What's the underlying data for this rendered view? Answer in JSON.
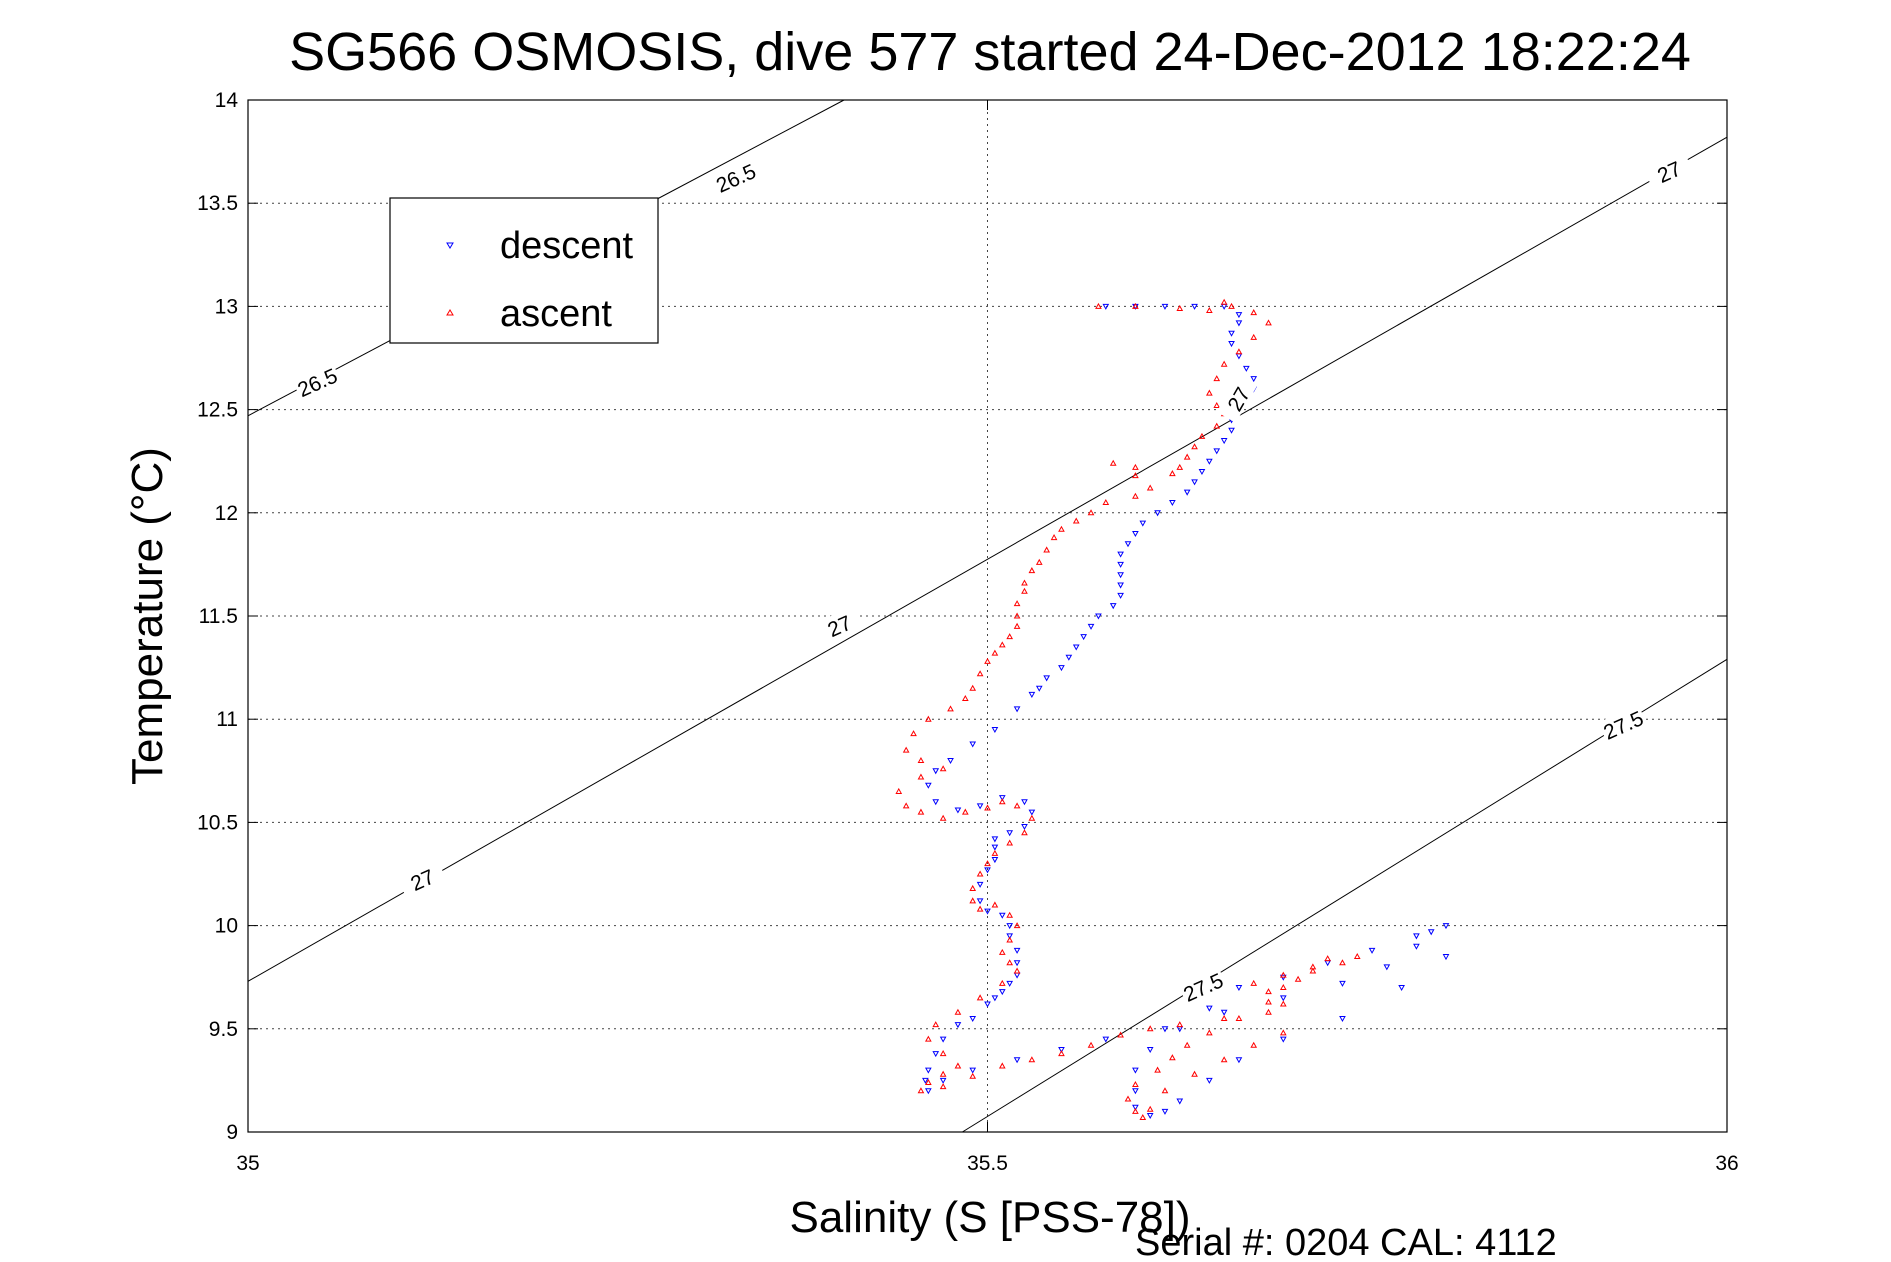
{
  "chart_data": {
    "type": "scatter",
    "title": "SG566 OSMOSIS, dive 577 started 24-Dec-2012 18:22:24",
    "xlabel": "Salinity (S [PSS-78])",
    "ylabel": "Temperature (°C)",
    "xlim": [
      35,
      36
    ],
    "ylim": [
      9,
      14
    ],
    "xticks": [
      "35",
      "35.5",
      "36"
    ],
    "yticks": [
      "9",
      "9.5",
      "10",
      "10.5",
      "11",
      "11.5",
      "12",
      "12.5",
      "13",
      "13.5",
      "14"
    ],
    "grid": true,
    "legend_position": "top-left",
    "footnote": "Serial #: 0204  CAL: 4112",
    "density_contours": [
      {
        "level": "26.5",
        "points": [
          [
            35,
            12.47
          ],
          [
            35.403,
            14
          ]
        ]
      },
      {
        "level": "27",
        "points": [
          [
            35,
            9.73
          ],
          [
            36,
            13.82
          ]
        ]
      },
      {
        "level": "27.5",
        "points": [
          [
            35.483,
            9
          ],
          [
            36,
            11.29
          ]
        ]
      }
    ],
    "contour_labels": [
      {
        "text": "26.5",
        "x": 35.33,
        "y": 13.62,
        "angle": -24
      },
      {
        "text": "26.5",
        "x": 35.047,
        "y": 12.63,
        "angle": -24
      },
      {
        "text": "27",
        "x": 35.961,
        "y": 13.65,
        "angle": -24
      },
      {
        "text": "27",
        "x": 35.4,
        "y": 11.45,
        "angle": -24
      },
      {
        "text": "27",
        "x": 35.118,
        "y": 10.22,
        "angle": -24
      },
      {
        "text": "27",
        "x": 35.67,
        "y": 12.55,
        "angle": -60
      },
      {
        "text": "27.5",
        "x": 35.93,
        "y": 10.97,
        "angle": -24
      },
      {
        "text": "27.5",
        "x": 35.646,
        "y": 9.7,
        "angle": -24
      }
    ],
    "series": [
      {
        "name": "descent",
        "color": "#0000ff",
        "marker": "triangle-down",
        "points": [
          [
            35.58,
            13.0
          ],
          [
            35.6,
            13.0
          ],
          [
            35.62,
            13.0
          ],
          [
            35.64,
            13.0
          ],
          [
            35.66,
            13.0
          ],
          [
            35.67,
            12.96
          ],
          [
            35.67,
            12.92
          ],
          [
            35.665,
            12.87
          ],
          [
            35.665,
            12.82
          ],
          [
            35.67,
            12.76
          ],
          [
            35.675,
            12.7
          ],
          [
            35.68,
            12.65
          ],
          [
            35.68,
            12.6
          ],
          [
            35.675,
            12.55
          ],
          [
            35.67,
            12.5
          ],
          [
            35.665,
            12.45
          ],
          [
            35.665,
            12.4
          ],
          [
            35.66,
            12.35
          ],
          [
            35.655,
            12.3
          ],
          [
            35.65,
            12.25
          ],
          [
            35.645,
            12.2
          ],
          [
            35.64,
            12.15
          ],
          [
            35.635,
            12.1
          ],
          [
            35.625,
            12.05
          ],
          [
            35.615,
            12.0
          ],
          [
            35.605,
            11.95
          ],
          [
            35.6,
            11.9
          ],
          [
            35.595,
            11.85
          ],
          [
            35.59,
            11.8
          ],
          [
            35.59,
            11.75
          ],
          [
            35.59,
            11.7
          ],
          [
            35.59,
            11.65
          ],
          [
            35.59,
            11.6
          ],
          [
            35.585,
            11.55
          ],
          [
            35.575,
            11.5
          ],
          [
            35.57,
            11.45
          ],
          [
            35.565,
            11.4
          ],
          [
            35.56,
            11.35
          ],
          [
            35.555,
            11.3
          ],
          [
            35.55,
            11.25
          ],
          [
            35.54,
            11.2
          ],
          [
            35.535,
            11.15
          ],
          [
            35.53,
            11.12
          ],
          [
            35.52,
            11.05
          ],
          [
            35.505,
            10.95
          ],
          [
            35.49,
            10.88
          ],
          [
            35.475,
            10.8
          ],
          [
            35.465,
            10.75
          ],
          [
            35.46,
            10.68
          ],
          [
            35.465,
            10.6
          ],
          [
            35.48,
            10.56
          ],
          [
            35.495,
            10.58
          ],
          [
            35.51,
            10.62
          ],
          [
            35.525,
            10.6
          ],
          [
            35.53,
            10.55
          ],
          [
            35.525,
            10.48
          ],
          [
            35.515,
            10.45
          ],
          [
            35.505,
            10.42
          ],
          [
            35.505,
            10.38
          ],
          [
            35.505,
            10.32
          ],
          [
            35.5,
            10.27
          ],
          [
            35.495,
            10.2
          ],
          [
            35.495,
            10.12
          ],
          [
            35.5,
            10.07
          ],
          [
            35.51,
            10.05
          ],
          [
            35.515,
            10.0
          ],
          [
            35.515,
            9.95
          ],
          [
            35.52,
            9.88
          ],
          [
            35.52,
            9.82
          ],
          [
            35.52,
            9.76
          ],
          [
            35.515,
            9.72
          ],
          [
            35.51,
            9.68
          ],
          [
            35.505,
            9.65
          ],
          [
            35.5,
            9.62
          ],
          [
            35.49,
            9.55
          ],
          [
            35.48,
            9.52
          ],
          [
            35.47,
            9.45
          ],
          [
            35.465,
            9.38
          ],
          [
            35.46,
            9.3
          ],
          [
            35.458,
            9.25
          ],
          [
            35.46,
            9.2
          ],
          [
            35.47,
            9.25
          ],
          [
            35.49,
            9.3
          ],
          [
            35.52,
            9.35
          ],
          [
            35.55,
            9.4
          ],
          [
            35.58,
            9.45
          ],
          [
            35.62,
            9.5
          ],
          [
            35.66,
            9.58
          ],
          [
            35.7,
            9.65
          ],
          [
            35.74,
            9.72
          ],
          [
            35.77,
            9.8
          ],
          [
            35.79,
            9.9
          ],
          [
            35.8,
            9.97
          ],
          [
            35.81,
            10.0
          ],
          [
            35.79,
            9.95
          ],
          [
            35.76,
            9.88
          ],
          [
            35.73,
            9.82
          ],
          [
            35.7,
            9.75
          ],
          [
            35.67,
            9.7
          ],
          [
            35.65,
            9.6
          ],
          [
            35.63,
            9.5
          ],
          [
            35.61,
            9.4
          ],
          [
            35.6,
            9.3
          ],
          [
            35.6,
            9.2
          ],
          [
            35.6,
            9.12
          ],
          [
            35.61,
            9.08
          ],
          [
            35.62,
            9.1
          ],
          [
            35.63,
            9.15
          ],
          [
            35.65,
            9.25
          ],
          [
            35.67,
            9.35
          ],
          [
            35.7,
            9.45
          ],
          [
            35.74,
            9.55
          ],
          [
            35.78,
            9.7
          ],
          [
            35.81,
            9.85
          ]
        ]
      },
      {
        "name": "ascent",
        "color": "#ff0000",
        "marker": "triangle-up",
        "points": [
          [
            35.575,
            13.0
          ],
          [
            35.6,
            13.0
          ],
          [
            35.63,
            12.99
          ],
          [
            35.65,
            12.98
          ],
          [
            35.66,
            13.02
          ],
          [
            35.665,
            13.0
          ],
          [
            35.68,
            12.97
          ],
          [
            35.69,
            12.92
          ],
          [
            35.68,
            12.85
          ],
          [
            35.67,
            12.78
          ],
          [
            35.66,
            12.72
          ],
          [
            35.655,
            12.65
          ],
          [
            35.65,
            12.58
          ],
          [
            35.655,
            12.52
          ],
          [
            35.66,
            12.48
          ],
          [
            35.655,
            12.42
          ],
          [
            35.645,
            12.37
          ],
          [
            35.64,
            12.32
          ],
          [
            35.635,
            12.27
          ],
          [
            35.63,
            12.22
          ],
          [
            35.625,
            12.19
          ],
          [
            35.6,
            12.22
          ],
          [
            35.585,
            12.24
          ],
          [
            35.6,
            12.18
          ],
          [
            35.61,
            12.12
          ],
          [
            35.6,
            12.08
          ],
          [
            35.58,
            12.05
          ],
          [
            35.57,
            12.0
          ],
          [
            35.56,
            11.96
          ],
          [
            35.55,
            11.92
          ],
          [
            35.545,
            11.88
          ],
          [
            35.54,
            11.82
          ],
          [
            35.535,
            11.76
          ],
          [
            35.53,
            11.72
          ],
          [
            35.525,
            11.66
          ],
          [
            35.525,
            11.62
          ],
          [
            35.52,
            11.56
          ],
          [
            35.52,
            11.5
          ],
          [
            35.52,
            11.45
          ],
          [
            35.515,
            11.4
          ],
          [
            35.51,
            11.36
          ],
          [
            35.505,
            11.32
          ],
          [
            35.5,
            11.28
          ],
          [
            35.495,
            11.22
          ],
          [
            35.49,
            11.15
          ],
          [
            35.485,
            11.1
          ],
          [
            35.475,
            11.05
          ],
          [
            35.46,
            11.0
          ],
          [
            35.45,
            10.93
          ],
          [
            35.445,
            10.85
          ],
          [
            35.455,
            10.8
          ],
          [
            35.47,
            10.76
          ],
          [
            35.455,
            10.72
          ],
          [
            35.44,
            10.65
          ],
          [
            35.445,
            10.58
          ],
          [
            35.455,
            10.55
          ],
          [
            35.47,
            10.52
          ],
          [
            35.485,
            10.55
          ],
          [
            35.5,
            10.57
          ],
          [
            35.51,
            10.6
          ],
          [
            35.52,
            10.58
          ],
          [
            35.53,
            10.52
          ],
          [
            35.525,
            10.45
          ],
          [
            35.515,
            10.4
          ],
          [
            35.505,
            10.35
          ],
          [
            35.5,
            10.3
          ],
          [
            35.495,
            10.25
          ],
          [
            35.49,
            10.18
          ],
          [
            35.49,
            10.12
          ],
          [
            35.495,
            10.08
          ],
          [
            35.505,
            10.1
          ],
          [
            35.515,
            10.05
          ],
          [
            35.52,
            10.0
          ],
          [
            35.515,
            9.93
          ],
          [
            35.51,
            9.87
          ],
          [
            35.515,
            9.82
          ],
          [
            35.52,
            9.78
          ],
          [
            35.51,
            9.72
          ],
          [
            35.495,
            9.65
          ],
          [
            35.48,
            9.58
          ],
          [
            35.465,
            9.52
          ],
          [
            35.46,
            9.45
          ],
          [
            35.47,
            9.38
          ],
          [
            35.48,
            9.32
          ],
          [
            35.47,
            9.28
          ],
          [
            35.46,
            9.24
          ],
          [
            35.455,
            9.2
          ],
          [
            35.47,
            9.22
          ],
          [
            35.49,
            9.27
          ],
          [
            35.51,
            9.32
          ],
          [
            35.53,
            9.35
          ],
          [
            35.55,
            9.38
          ],
          [
            35.57,
            9.42
          ],
          [
            35.59,
            9.47
          ],
          [
            35.61,
            9.5
          ],
          [
            35.63,
            9.52
          ],
          [
            35.66,
            9.55
          ],
          [
            35.69,
            9.58
          ],
          [
            35.7,
            9.62
          ],
          [
            35.69,
            9.68
          ],
          [
            35.68,
            9.72
          ],
          [
            35.7,
            9.76
          ],
          [
            35.72,
            9.78
          ],
          [
            35.74,
            9.82
          ],
          [
            35.75,
            9.85
          ],
          [
            35.73,
            9.84
          ],
          [
            35.72,
            9.8
          ],
          [
            35.71,
            9.74
          ],
          [
            35.7,
            9.7
          ],
          [
            35.69,
            9.63
          ],
          [
            35.67,
            9.55
          ],
          [
            35.65,
            9.48
          ],
          [
            35.635,
            9.42
          ],
          [
            35.625,
            9.36
          ],
          [
            35.615,
            9.3
          ],
          [
            35.6,
            9.23
          ],
          [
            35.595,
            9.16
          ],
          [
            35.6,
            9.1
          ],
          [
            35.605,
            9.07
          ],
          [
            35.61,
            9.11
          ],
          [
            35.62,
            9.2
          ],
          [
            35.64,
            9.28
          ],
          [
            35.66,
            9.35
          ],
          [
            35.68,
            9.42
          ],
          [
            35.7,
            9.48
          ]
        ]
      }
    ]
  },
  "legend": {
    "items": [
      {
        "label": "descent",
        "color": "#0000ff",
        "marker": "triangle-down"
      },
      {
        "label": "ascent",
        "color": "#ff0000",
        "marker": "triangle-up"
      }
    ]
  }
}
